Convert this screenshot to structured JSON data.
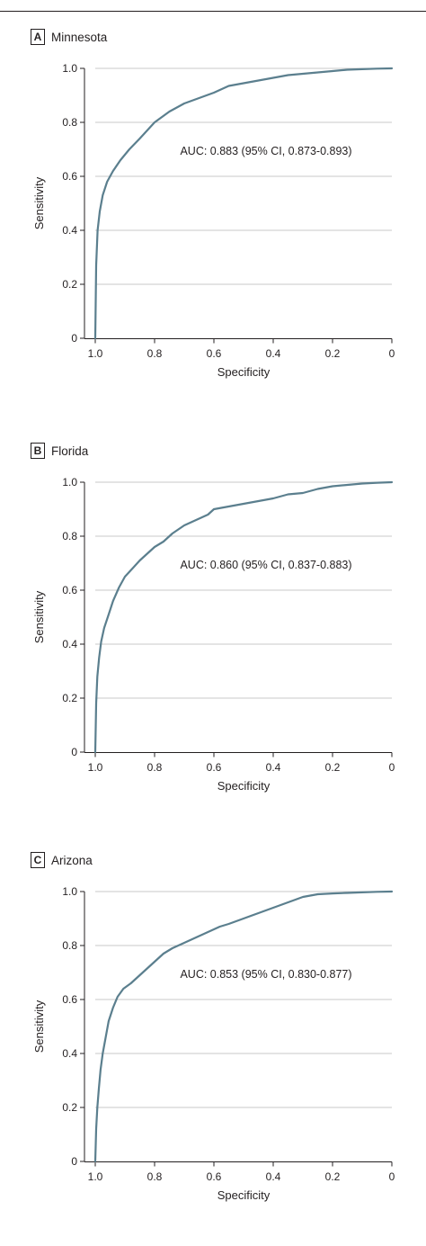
{
  "header_text": "",
  "chart_data": [
    {
      "type": "line",
      "panel_letter": "A",
      "panel_title": "Minnesota",
      "xlabel": "Specificity",
      "ylabel": "Sensitivity",
      "xlim": [
        1.0,
        0
      ],
      "ylim": [
        0,
        1.0
      ],
      "x_reversed": true,
      "grid": "horizontal",
      "xticks": [
        1.0,
        0.8,
        0.6,
        0.4,
        0.2,
        0
      ],
      "xtick_labels": [
        "1.0",
        "0.8",
        "0.6",
        "0.4",
        "0.2",
        "0"
      ],
      "yticks": [
        0,
        0.2,
        0.4,
        0.6,
        0.8,
        1.0
      ],
      "ytick_labels": [
        "0",
        "0.2",
        "0.4",
        "0.6",
        "0.8",
        "1.0"
      ],
      "annotation": "AUC: 0.883 (95% CI, 0.873-0.893)",
      "line_color": "#5b7f8e",
      "series": [
        {
          "x": [
            1.0,
            0.997,
            0.992,
            0.985,
            0.975,
            0.96,
            0.94,
            0.915,
            0.885,
            0.85,
            0.8,
            0.75,
            0.7,
            0.65,
            0.6,
            0.55,
            0.5,
            0.45,
            0.4,
            0.35,
            0.3,
            0.25,
            0.2,
            0.15,
            0.1,
            0.05,
            0.0
          ],
          "y": [
            0.0,
            0.27,
            0.4,
            0.47,
            0.53,
            0.58,
            0.62,
            0.66,
            0.7,
            0.74,
            0.8,
            0.84,
            0.87,
            0.89,
            0.91,
            0.935,
            0.945,
            0.955,
            0.965,
            0.975,
            0.98,
            0.985,
            0.99,
            0.995,
            0.997,
            0.999,
            1.0
          ]
        }
      ]
    },
    {
      "type": "line",
      "panel_letter": "B",
      "panel_title": "Florida",
      "xlabel": "Specificity",
      "ylabel": "Sensitivity",
      "xlim": [
        1.0,
        0
      ],
      "ylim": [
        0,
        1.0
      ],
      "x_reversed": true,
      "grid": "horizontal",
      "xticks": [
        1.0,
        0.8,
        0.6,
        0.4,
        0.2,
        0
      ],
      "xtick_labels": [
        "1.0",
        "0.8",
        "0.6",
        "0.4",
        "0.2",
        "0"
      ],
      "yticks": [
        0,
        0.2,
        0.4,
        0.6,
        0.8,
        1.0
      ],
      "ytick_labels": [
        "0",
        "0.2",
        "0.4",
        "0.6",
        "0.8",
        "1.0"
      ],
      "annotation": "AUC: 0.860 (95% CI, 0.837-0.883)",
      "line_color": "#5b7f8e",
      "series": [
        {
          "x": [
            1.0,
            0.997,
            0.993,
            0.987,
            0.98,
            0.97,
            0.955,
            0.94,
            0.92,
            0.9,
            0.875,
            0.85,
            0.82,
            0.8,
            0.77,
            0.74,
            0.7,
            0.66,
            0.62,
            0.6,
            0.55,
            0.5,
            0.45,
            0.4,
            0.35,
            0.3,
            0.25,
            0.2,
            0.15,
            0.1,
            0.05,
            0.0
          ],
          "y": [
            0.0,
            0.18,
            0.28,
            0.35,
            0.41,
            0.46,
            0.51,
            0.56,
            0.61,
            0.65,
            0.68,
            0.71,
            0.74,
            0.76,
            0.78,
            0.81,
            0.84,
            0.86,
            0.88,
            0.9,
            0.91,
            0.92,
            0.93,
            0.94,
            0.955,
            0.96,
            0.975,
            0.985,
            0.99,
            0.995,
            0.998,
            1.0
          ]
        }
      ]
    },
    {
      "type": "line",
      "panel_letter": "C",
      "panel_title": "Arizona",
      "xlabel": "Specificity",
      "ylabel": "Sensitivity",
      "xlim": [
        1.0,
        0
      ],
      "ylim": [
        0,
        1.0
      ],
      "x_reversed": true,
      "grid": "horizontal",
      "xticks": [
        1.0,
        0.8,
        0.6,
        0.4,
        0.2,
        0
      ],
      "xtick_labels": [
        "1.0",
        "0.8",
        "0.6",
        "0.4",
        "0.2",
        "0"
      ],
      "yticks": [
        0,
        0.2,
        0.4,
        0.6,
        0.8,
        1.0
      ],
      "ytick_labels": [
        "0",
        "0.2",
        "0.4",
        "0.6",
        "0.8",
        "1.0"
      ],
      "annotation": "AUC: 0.853 (95% CI, 0.830-0.877)",
      "line_color": "#5b7f8e",
      "series": [
        {
          "x": [
            1.0,
            0.997,
            0.993,
            0.988,
            0.982,
            0.975,
            0.965,
            0.955,
            0.94,
            0.925,
            0.905,
            0.88,
            0.85,
            0.82,
            0.8,
            0.77,
            0.74,
            0.7,
            0.66,
            0.62,
            0.58,
            0.55,
            0.5,
            0.45,
            0.4,
            0.35,
            0.3,
            0.25,
            0.2,
            0.15,
            0.1,
            0.05,
            0.0
          ],
          "y": [
            0.0,
            0.12,
            0.2,
            0.27,
            0.34,
            0.4,
            0.46,
            0.52,
            0.57,
            0.61,
            0.64,
            0.66,
            0.69,
            0.72,
            0.74,
            0.77,
            0.79,
            0.81,
            0.83,
            0.85,
            0.87,
            0.88,
            0.9,
            0.92,
            0.94,
            0.96,
            0.98,
            0.99,
            0.993,
            0.995,
            0.997,
            0.999,
            1.0
          ]
        }
      ]
    }
  ]
}
